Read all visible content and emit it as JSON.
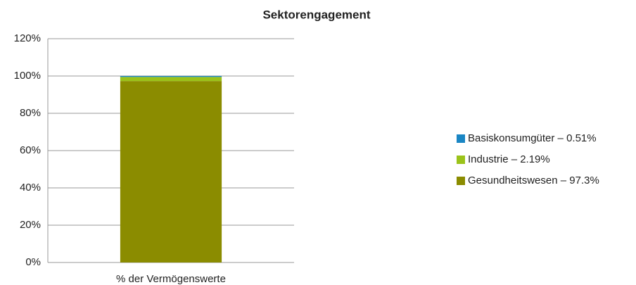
{
  "chart_data": {
    "type": "stacked_bar",
    "title": "Sektorengagement",
    "categories": [
      "% der Vermögenswerte"
    ],
    "series": [
      {
        "name": "Basiskonsumgüter – 0.51%",
        "color": "#1a86c4",
        "values": [
          0.51
        ]
      },
      {
        "name": "Industrie – 2.19%",
        "color": "#9bc31a",
        "values": [
          2.19
        ]
      },
      {
        "name": "Gesundheitswesen – 97.3%",
        "color": "#8b8c00",
        "values": [
          97.3
        ]
      }
    ],
    "ylim": [
      0,
      120
    ],
    "yticks": [
      {
        "value": 0,
        "label": "0%"
      },
      {
        "value": 20,
        "label": "20%"
      },
      {
        "value": 40,
        "label": "40%"
      },
      {
        "value": 60,
        "label": "60%"
      },
      {
        "value": 80,
        "label": "80%"
      },
      {
        "value": 100,
        "label": "100%"
      },
      {
        "value": 120,
        "label": "120%"
      }
    ],
    "grid": true,
    "legend": "right"
  }
}
